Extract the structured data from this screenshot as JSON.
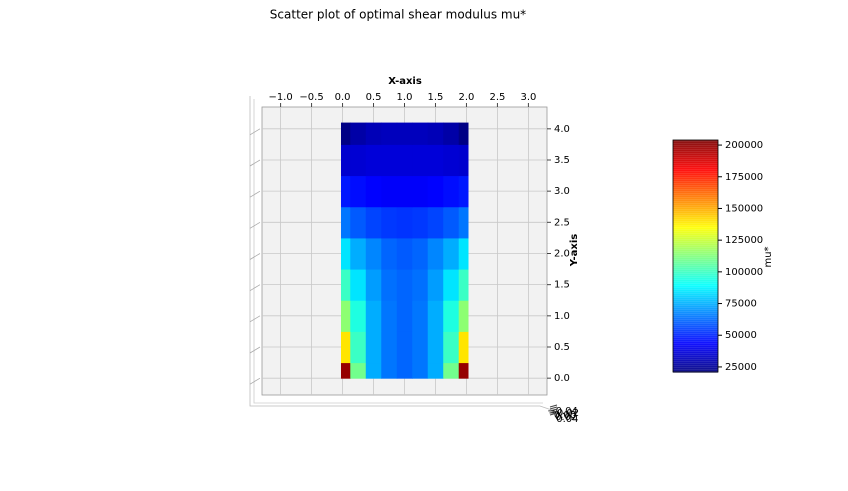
{
  "chart_data": {
    "type": "scatter",
    "title": "Scatter plot of optimal shear modulus mu*",
    "x_label": "X-axis",
    "y_label": "Y-axis",
    "colorbar_label": "mu*",
    "colormap": "jet",
    "grid": true,
    "xlim": [
      -1.3,
      3.3
    ],
    "ylim": [
      -0.27,
      4.35
    ],
    "xticks": [
      {
        "value": -1,
        "label": "−1.0"
      },
      {
        "value": -0.5,
        "label": "−0.5"
      },
      {
        "value": 0,
        "label": "0.0"
      },
      0.5,
      {
        "value": 1,
        "label": "1.0"
      },
      1.5,
      {
        "value": 2,
        "label": "2.0"
      },
      2.5,
      {
        "value": 3,
        "label": "3.0"
      }
    ],
    "yticks": [
      {
        "value": 0,
        "label": "0.0"
      },
      0.5,
      {
        "value": 1,
        "label": "1.0"
      },
      1.5,
      {
        "value": 2,
        "label": "2.0"
      },
      2.5,
      {
        "value": 3,
        "label": "3.0"
      },
      3.5,
      {
        "value": 4,
        "label": "4.0"
      }
    ],
    "zticks": [
      {
        "value": -0.04,
        "label": "−0.04"
      },
      {
        "value": -0.02,
        "label": "−0.02"
      },
      {
        "value": 0,
        "label": "0.00"
      },
      {
        "value": 0.02,
        "label": "0.02"
      },
      {
        "value": 0.04,
        "label": "0.04"
      }
    ],
    "clim": [
      21000,
      204000
    ],
    "cticks": [
      25000,
      50000,
      75000,
      100000,
      125000,
      150000,
      175000,
      200000
    ],
    "x": [
      0,
      0.25,
      0.5,
      0.75,
      1,
      1.25,
      1.5,
      1.75,
      2
    ],
    "y": [
      0,
      0.5,
      1,
      1.5,
      2,
      2.5,
      3,
      3.5,
      4
    ],
    "values": [
      [
        200000,
        110000,
        75000,
        65000,
        62000,
        65000,
        75000,
        110000,
        200000
      ],
      [
        140000,
        100000,
        75000,
        65000,
        62000,
        65000,
        75000,
        100000,
        140000
      ],
      [
        115000,
        95000,
        75000,
        65000,
        62000,
        65000,
        75000,
        95000,
        115000
      ],
      [
        100000,
        85000,
        72000,
        64000,
        62000,
        64000,
        72000,
        85000,
        100000
      ],
      [
        85000,
        75000,
        68000,
        62000,
        60000,
        62000,
        68000,
        75000,
        85000
      ],
      [
        65000,
        60000,
        56000,
        54000,
        53000,
        54000,
        56000,
        60000,
        65000
      ],
      [
        48000,
        46000,
        44000,
        43000,
        43000,
        43000,
        44000,
        46000,
        48000
      ],
      [
        35000,
        36000,
        37000,
        37000,
        37000,
        37000,
        37000,
        36000,
        35000
      ],
      [
        22000,
        28000,
        31000,
        32000,
        32000,
        32000,
        31000,
        28000,
        22000
      ]
    ]
  }
}
